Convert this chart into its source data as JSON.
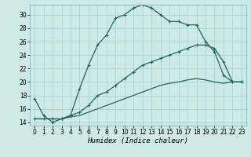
{
  "xlabel": "Humidex (Indice chaleur)",
  "bg_color": "#ceeae7",
  "grid_color": "#aed4d0",
  "line_color": "#1a6b5a",
  "xlim": [
    -0.5,
    23.5
  ],
  "ylim": [
    13.5,
    31.5
  ],
  "yticks": [
    14,
    16,
    18,
    20,
    22,
    24,
    26,
    28,
    30
  ],
  "xticks": [
    0,
    1,
    2,
    3,
    4,
    5,
    6,
    7,
    8,
    9,
    10,
    11,
    12,
    13,
    14,
    15,
    16,
    17,
    18,
    19,
    20,
    21,
    22,
    23
  ],
  "series1_x": [
    0,
    1,
    2,
    3,
    4,
    5,
    6,
    7,
    8,
    9,
    10,
    11,
    12,
    13,
    14,
    15,
    16,
    17,
    18,
    19,
    20,
    21,
    22,
    23
  ],
  "series1_y": [
    17.5,
    15.0,
    14.0,
    14.5,
    15.0,
    19.0,
    22.5,
    25.5,
    27.0,
    29.5,
    30.0,
    31.0,
    31.5,
    31.0,
    30.0,
    29.0,
    29.0,
    28.5,
    28.5,
    26.0,
    24.5,
    21.0,
    20.0,
    20.0
  ],
  "series2_x": [
    0,
    1,
    2,
    3,
    4,
    5,
    6,
    7,
    8,
    9,
    10,
    11,
    12,
    13,
    14,
    15,
    16,
    17,
    18,
    19,
    20,
    21,
    22,
    23
  ],
  "series2_y": [
    14.5,
    14.5,
    14.5,
    14.5,
    15.0,
    15.5,
    16.5,
    18.0,
    18.5,
    19.5,
    20.5,
    21.5,
    22.5,
    23.0,
    23.5,
    24.0,
    24.5,
    25.0,
    25.5,
    25.5,
    25.0,
    23.0,
    20.0,
    20.0
  ],
  "series3_x": [
    0,
    1,
    2,
    3,
    4,
    5,
    6,
    7,
    8,
    9,
    10,
    11,
    12,
    13,
    14,
    15,
    16,
    17,
    18,
    19,
    20,
    21,
    22,
    23
  ],
  "series3_y": [
    14.5,
    14.5,
    14.5,
    14.5,
    14.8,
    15.0,
    15.5,
    16.0,
    16.5,
    17.0,
    17.5,
    18.0,
    18.5,
    19.0,
    19.5,
    19.8,
    20.0,
    20.3,
    20.5,
    20.3,
    20.0,
    19.8,
    20.0,
    20.0
  ]
}
